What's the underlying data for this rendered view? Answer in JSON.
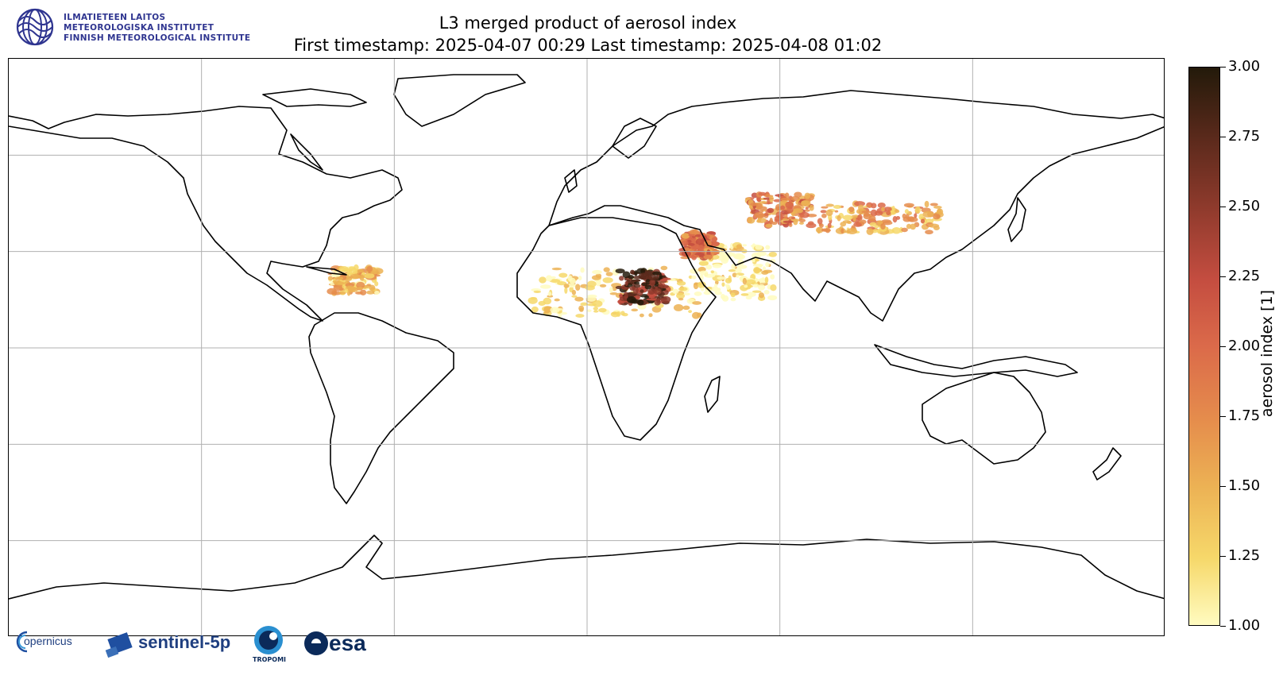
{
  "title": {
    "line1": "L3 merged product of aerosol index",
    "line2": "First timestamp: 2025-04-07 00:29   Last timestamp: 2025-04-08 01:02"
  },
  "header_logo": {
    "icon": "fmi-logo",
    "lines": [
      "ILMATIETEEN LAITOS",
      "METEOROLOGISKA INSTITUTET",
      "FINNISH METEOROLOGICAL INSTITUTE"
    ],
    "color": "#2f3590"
  },
  "map": {
    "projection": "equirectangular",
    "lon_range": [
      -180,
      180
    ],
    "lat_range": [
      -90,
      90
    ],
    "grid_lon": [
      -120,
      -60,
      0,
      60,
      120
    ],
    "grid_lat": [
      -60,
      -30,
      0,
      30,
      60
    ],
    "variable": "aerosol index",
    "hotspots": [
      {
        "region": "Sahara",
        "lon_range": [
          -17,
          35
        ],
        "lat_range": [
          10,
          25
        ],
        "level": 1.6
      },
      {
        "region": "Central Sahara core",
        "lon_range": [
          10,
          25
        ],
        "lat_range": [
          14,
          24
        ],
        "level": 3.0
      },
      {
        "region": "Arabian Peninsula",
        "lon_range": [
          35,
          58
        ],
        "lat_range": [
          15,
          32
        ],
        "level": 1.5
      },
      {
        "region": "Middle East",
        "lon_range": [
          30,
          40
        ],
        "lat_range": [
          28,
          36
        ],
        "level": 2.4
      },
      {
        "region": "Caspian / Central Asia",
        "lon_range": [
          50,
          70
        ],
        "lat_range": [
          38,
          48
        ],
        "level": 2.2
      },
      {
        "region": "Taklamakan / Mongolia",
        "lon_range": [
          72,
          110
        ],
        "lat_range": [
          36,
          45
        ],
        "level": 2.0
      },
      {
        "region": "Caribbean",
        "lon_range": [
          -80,
          -65
        ],
        "lat_range": [
          17,
          25
        ],
        "level": 1.8
      }
    ]
  },
  "colorbar": {
    "label": "aerosol index [1]",
    "min": 1.0,
    "max": 3.0,
    "ticks": [
      "1.00",
      "1.25",
      "1.50",
      "1.75",
      "2.00",
      "2.25",
      "2.50",
      "2.75",
      "3.00"
    ],
    "colors": [
      "#fffbc0",
      "#f6d86a",
      "#ecb154",
      "#e58c4c",
      "#db6a4a",
      "#c44d40",
      "#8e3a2c",
      "#5c2a1c",
      "#231a0a"
    ]
  },
  "footer_logos": {
    "copernicus": "opernicus",
    "sentinel": "sentinel-5p",
    "tropomi": "TROPOMI",
    "esa": "esa"
  }
}
